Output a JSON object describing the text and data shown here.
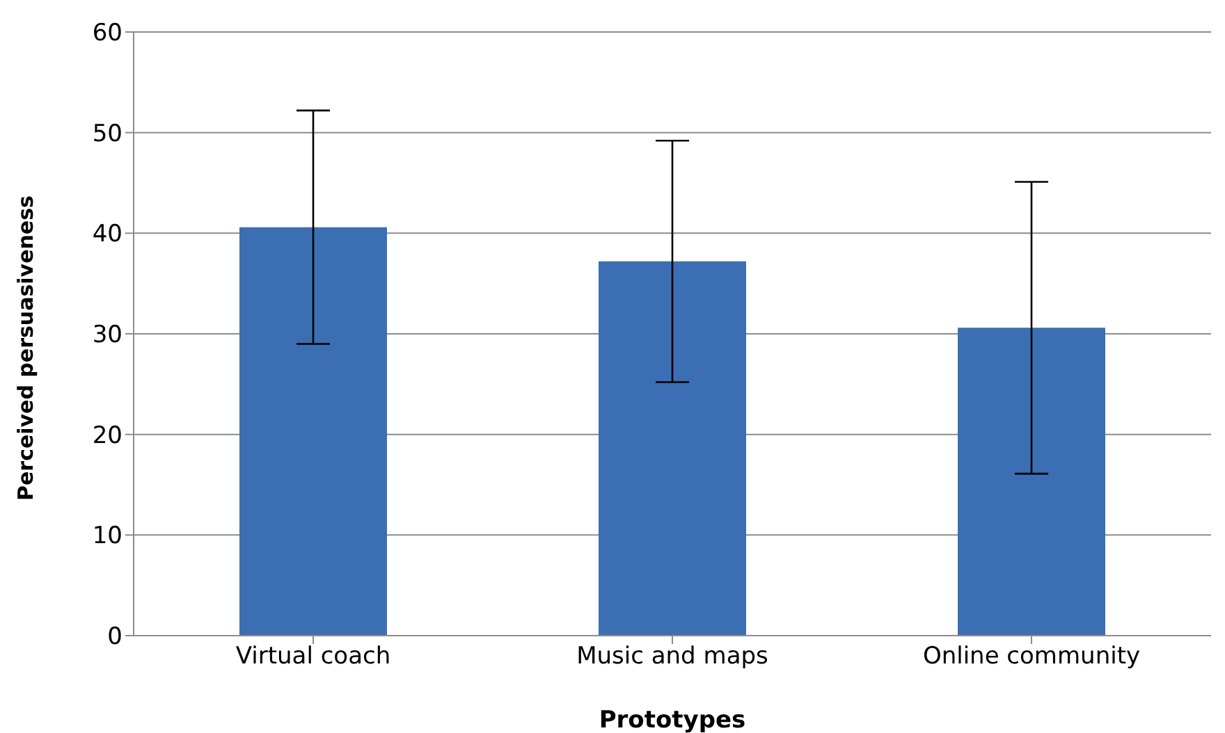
{
  "chart_data": {
    "type": "bar",
    "xlabel": "Prototypes",
    "ylabel": "Perceived persuasiveness",
    "categories": [
      "Virtual coach",
      "Music and maps",
      "Online community"
    ],
    "values": [
      40.6,
      37.2,
      30.6
    ],
    "errors": [
      11.6,
      12,
      14.5
    ],
    "color": "#3c6eb4",
    "ylim": [
      0,
      60
    ],
    "yticks": [
      0,
      10,
      20,
      30,
      40,
      50,
      60
    ],
    "grid": "y",
    "legend": false
  }
}
